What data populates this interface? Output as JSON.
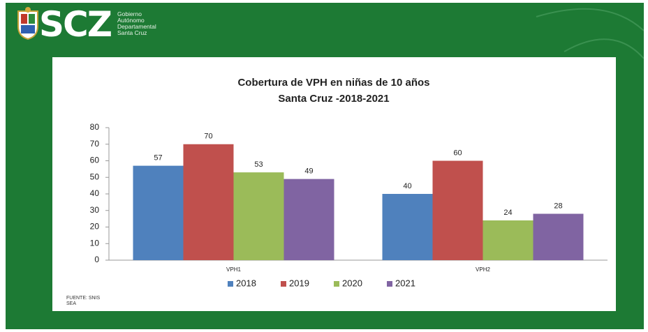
{
  "logo": {
    "mark": "SCZ",
    "lines": [
      "Gobierno",
      "Autónomo",
      "Departamental",
      "Santa Cruz"
    ]
  },
  "chart_data": {
    "type": "bar",
    "title": "Cobertura de  VPH en niñas de 10 años",
    "subtitle": "Santa Cruz -2018-2021",
    "categories": [
      "VPH1",
      "VPH2"
    ],
    "series": [
      {
        "name": "2018",
        "color": "#4f81bd",
        "values": [
          57,
          40
        ]
      },
      {
        "name": "2019",
        "color": "#c0504d",
        "values": [
          70,
          60
        ]
      },
      {
        "name": "2020",
        "color": "#9bbb59",
        "values": [
          53,
          24
        ]
      },
      {
        "name": "2021",
        "color": "#8064a2",
        "values": [
          49,
          28
        ]
      }
    ],
    "ylim": [
      0,
      80
    ],
    "yticks": [
      0,
      10,
      20,
      30,
      40,
      50,
      60,
      70,
      80
    ],
    "grid": false,
    "legend": "bottom",
    "source": [
      "FUENTE: SNIS",
      "SEA"
    ]
  }
}
